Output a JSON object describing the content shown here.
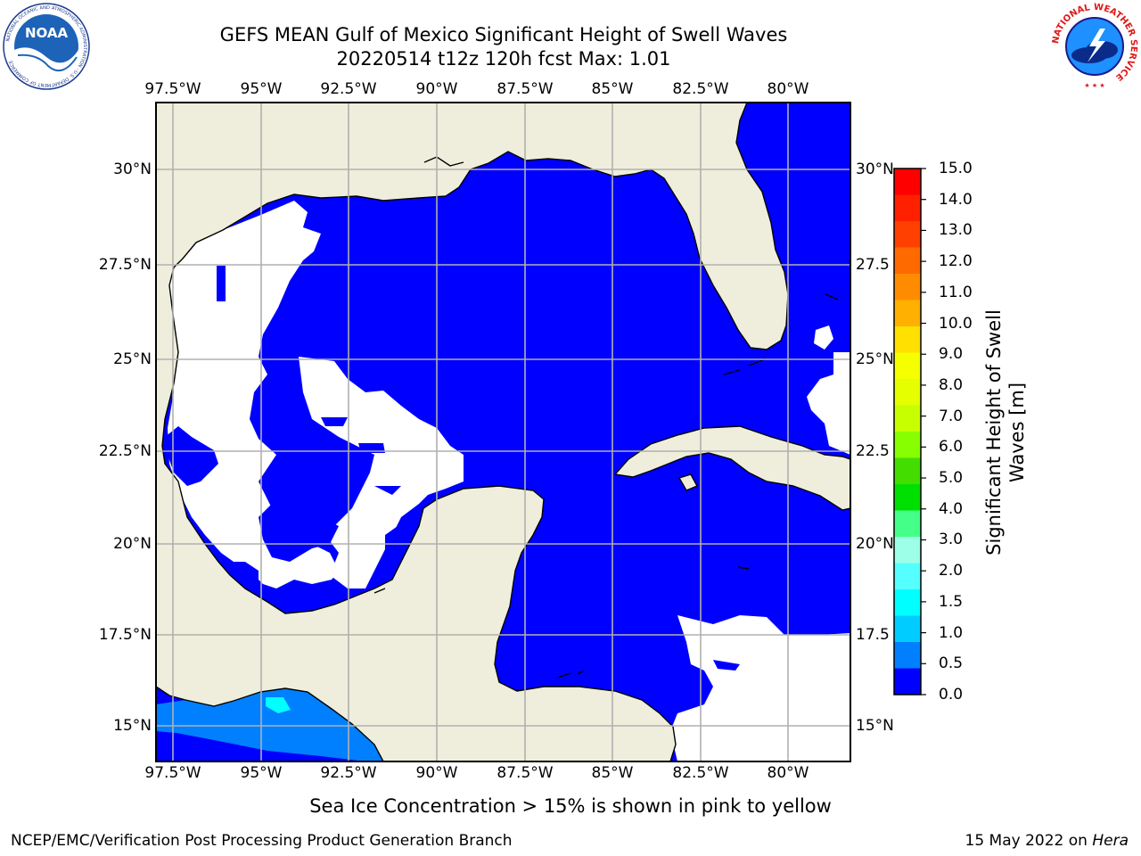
{
  "header": {
    "title_line1": "GEFS MEAN Gulf of Mexico Significant Height of Swell Waves",
    "title_line2": "20220514 t12z 120h fcst   Max: 1.01"
  },
  "logos": {
    "noaa": {
      "text": "NOAA",
      "ring_text": "NATIONAL OCEANIC AND ATMOSPHERIC ADMINISTRATION · U.S. DEPARTMENT OF COMMERCE"
    },
    "nws": {
      "ring_text": "NATIONAL WEATHER SERVICE"
    }
  },
  "map": {
    "extent": {
      "lon_min": -98.0,
      "lon_max": -78.2,
      "lat_min": 14.2,
      "lat_max": 31.8
    },
    "lon_ticks": [
      "97.5°W",
      "95°W",
      "92.5°W",
      "90°W",
      "87.5°W",
      "85°W",
      "82.5°W",
      "80°W"
    ],
    "lat_ticks": [
      "30°N",
      "27.5°N",
      "25°N",
      "22.5°N",
      "20°N",
      "17.5°N",
      "15°N"
    ],
    "right_lat_ticks": [
      "30°N",
      "27.5",
      "25°N",
      "22.5",
      "20°N",
      "17.5",
      "15°N"
    ],
    "colors": {
      "land": "#efeedc",
      "ocean_low": "#0000ff",
      "no_data": "#ffffff",
      "band_0_5": "#0080ff",
      "band_1_0": "#00ffff",
      "grid": "#b0b0b0"
    }
  },
  "colorbar": {
    "label": "Significant Height of Swell Waves [m]",
    "ticks": [
      "15.0",
      "14.0",
      "13.0",
      "12.0",
      "11.0",
      "10.0",
      "9.0",
      "8.0",
      "7.0",
      "6.0",
      "5.0",
      "4.0",
      "3.0",
      "2.0",
      "1.5",
      "1.0",
      "0.5",
      "0.0"
    ],
    "colors_top_to_bottom": [
      "#ff0000",
      "#ff2000",
      "#ff4000",
      "#ff6a00",
      "#ff8c00",
      "#ffb000",
      "#ffe000",
      "#f5ff00",
      "#e6ff00",
      "#c8ff00",
      "#88ff00",
      "#44dd00",
      "#00e000",
      "#44ff88",
      "#9dffe8",
      "#55ffff",
      "#00ffff",
      "#00ccff",
      "#0080ff",
      "#0000ff"
    ]
  },
  "notes": {
    "ice": "Sea Ice Concentration > 15% is shown in pink to yellow"
  },
  "footer": {
    "left": "NCEP/EMC/Verification Post Processing Product Generation Branch",
    "right_date": "15 May 2022 on ",
    "right_machine": "Hera"
  }
}
